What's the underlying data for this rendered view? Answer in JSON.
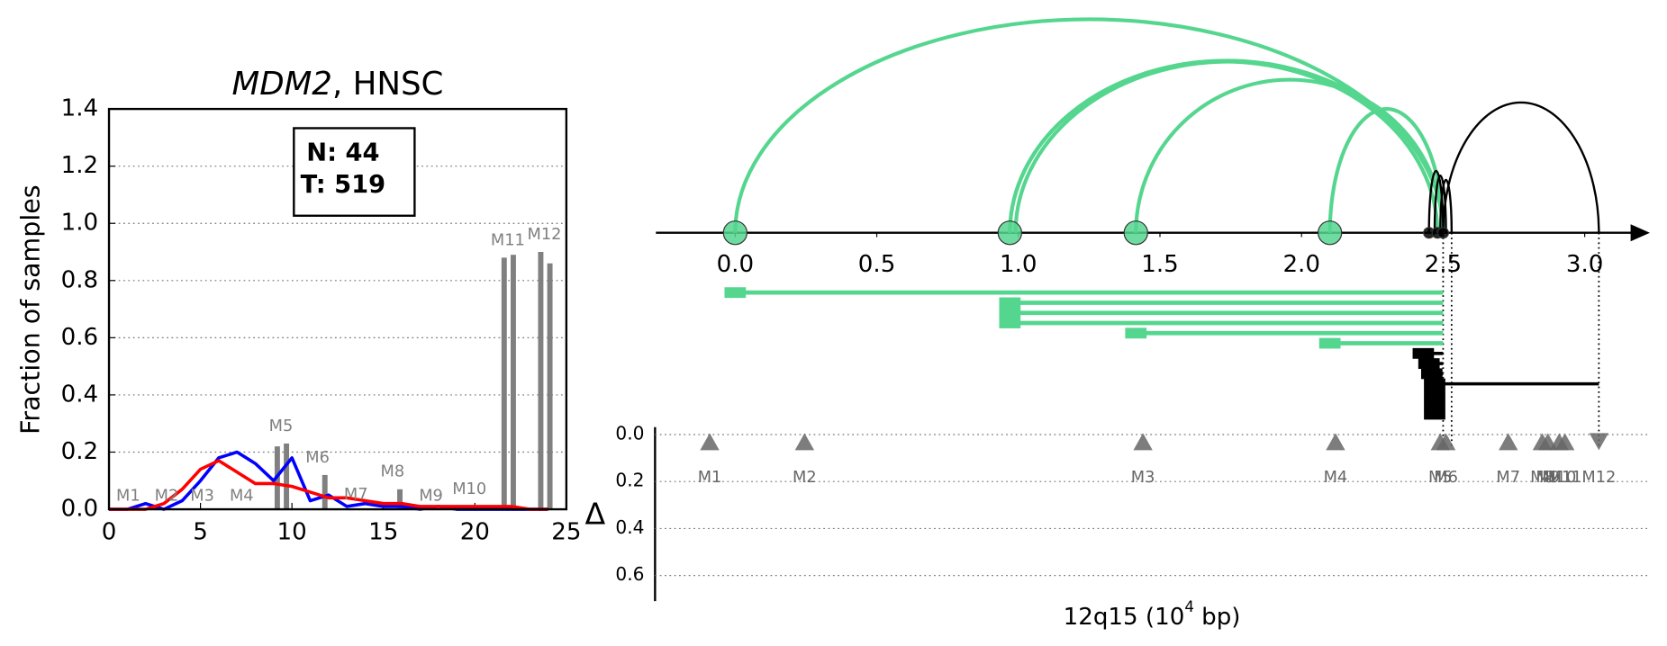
{
  "chart_data": [
    {
      "type": "line",
      "title_gene": "MDM2",
      "title_suffix": ", HNSC",
      "ylabel": "Fraction of samples",
      "annotation": [
        "N: 44",
        "T: 519"
      ],
      "x": [
        0,
        1,
        2,
        3,
        4,
        5,
        6,
        7,
        8,
        9,
        10,
        11,
        12,
        13,
        14,
        15,
        16,
        17,
        18,
        19,
        20,
        21,
        22,
        23,
        24
      ],
      "series": [
        {
          "color": "#0000ff",
          "values": [
            0,
            0,
            0.02,
            0,
            0.03,
            0.1,
            0.18,
            0.2,
            0.16,
            0.1,
            0.18,
            0.03,
            0.05,
            0.01,
            0.02,
            0.01,
            0.01,
            0,
            0.01,
            0,
            0,
            0,
            0,
            0,
            0
          ]
        },
        {
          "color": "#ff0000",
          "values": [
            0,
            0,
            0,
            0.02,
            0.07,
            0.14,
            0.17,
            0.13,
            0.09,
            0.09,
            0.08,
            0.06,
            0.04,
            0.04,
            0.03,
            0.02,
            0.02,
            0.01,
            0.01,
            0.01,
            0.01,
            0.01,
            0.01,
            0,
            0
          ]
        }
      ],
      "bars": {
        "color": "#808080",
        "x": [
          9.2,
          9.7,
          11.8,
          15.9,
          21.6,
          22.1,
          23.6,
          24.1
        ],
        "values": [
          0.22,
          0.23,
          0.12,
          0.07,
          0.88,
          0.89,
          0.9,
          0.86
        ]
      },
      "bar_labels": {
        "color": "#808080",
        "labels": [
          "M1",
          "M2",
          "M3",
          "M4",
          "M5",
          "M6",
          "M7",
          "M8",
          "M9",
          "M10",
          "M11",
          "M12"
        ],
        "x": [
          1.05,
          3.15,
          5.1,
          7.25,
          9.4,
          11.4,
          13.5,
          15.5,
          17.6,
          19.7,
          21.8,
          23.8
        ],
        "y": [
          0.045,
          0.045,
          0.045,
          0.045,
          0.29,
          0.18,
          0.05,
          0.13,
          0.045,
          0.07,
          0.94,
          0.96
        ]
      },
      "xlim": [
        0,
        25
      ],
      "ylim": [
        0,
        1.4
      ],
      "xticks": [
        0,
        5,
        10,
        15,
        20,
        25
      ],
      "yticks": [
        {
          "value": 0,
          "label": "0.0"
        },
        {
          "value": 0.2,
          "label": "0.2"
        },
        {
          "value": 0.4,
          "label": "0.4"
        },
        {
          "value": 0.6,
          "label": "0.6"
        },
        {
          "value": 0.8,
          "label": "0.8"
        },
        {
          "value": 1.0,
          "label": "1.0"
        },
        {
          "value": 1.2,
          "label": "1.2"
        },
        {
          "value": 1.4,
          "label": "1.4"
        }
      ],
      "grid": true
    },
    {
      "type": "arc",
      "xlim": [
        -0.28,
        3.23
      ],
      "xticks": [
        {
          "value": 0,
          "label": "0.0"
        },
        {
          "value": 0.5,
          "label": "0.5"
        },
        {
          "value": 1.0,
          "label": "1.0"
        },
        {
          "value": 1.5,
          "label": "1.5"
        },
        {
          "value": 2.0,
          "label": "2.0"
        },
        {
          "value": 2.5,
          "label": "2.5"
        },
        {
          "value": 3.0,
          "label": "3.0"
        }
      ],
      "xlabel_base": "12q15 (10",
      "xlabel_exp": "4",
      "xlabel_tail": " bp)",
      "breakpoints": [
        {
          "color": "#55d68f",
          "x": [
            0,
            0.97,
            1.415,
            2.1
          ]
        },
        {
          "color": "#000000",
          "x": [
            2.45,
            2.48,
            2.5
          ]
        }
      ],
      "arcs": [
        {
          "start": 0,
          "end": 2.5,
          "color": "#55d68f"
        },
        {
          "start": 0.97,
          "end": 2.48,
          "color": "#55d68f"
        },
        {
          "start": 0.97,
          "end": 2.5,
          "color": "#55d68f"
        },
        {
          "start": 0.99,
          "end": 2.5,
          "color": "#55d68f"
        },
        {
          "start": 1.415,
          "end": 2.5,
          "color": "#55d68f"
        },
        {
          "start": 2.1,
          "end": 2.5,
          "color": "#55d68f"
        },
        {
          "start": 2.45,
          "end": 2.5,
          "color": "#000000"
        },
        {
          "start": 2.47,
          "end": 2.51,
          "color": "#000000"
        },
        {
          "start": 2.49,
          "end": 2.53,
          "color": "#000000"
        },
        {
          "start": 2.5,
          "end": 3.05,
          "color": "#000000"
        }
      ],
      "segments": [
        {
          "start": 0,
          "end": 2.5,
          "color": "#55d68f"
        },
        {
          "start": 0.97,
          "end": 2.5,
          "color": "#55d68f"
        },
        {
          "start": 0.97,
          "end": 2.5,
          "color": "#55d68f"
        },
        {
          "start": 0.97,
          "end": 2.5,
          "color": "#55d68f"
        },
        {
          "start": 1.415,
          "end": 2.5,
          "color": "#55d68f"
        },
        {
          "start": 2.1,
          "end": 2.5,
          "color": "#55d68f"
        },
        {
          "start": 2.43,
          "end": 2.5,
          "color": "#000000"
        },
        {
          "start": 2.45,
          "end": 2.5,
          "color": "#000000"
        },
        {
          "start": 2.46,
          "end": 2.5,
          "color": "#000000"
        },
        {
          "start": 2.47,
          "end": 3.05,
          "color": "#000000"
        },
        {
          "start": 2.47,
          "end": 2.5,
          "color": "#000000"
        },
        {
          "start": 2.47,
          "end": 2.5,
          "color": "#000000"
        },
        {
          "start": 2.47,
          "end": 2.5,
          "color": "#000000"
        }
      ],
      "vlines": [
        2.5,
        2.53,
        3.05
      ],
      "delta_label": "Δ",
      "delta_ylim": [
        0,
        0.7
      ],
      "delta_yticks": [
        {
          "value": 0,
          "label": "0.0"
        },
        {
          "value": 0.2,
          "label": "0.2"
        },
        {
          "value": 0.4,
          "label": "0.4"
        },
        {
          "value": 0.6,
          "label": "0.6"
        }
      ],
      "motifs": {
        "color": "#666666",
        "labels": [
          "M1",
          "M2",
          "M3",
          "M4",
          "M5",
          "M6",
          "M7",
          "M8",
          "M9",
          "M10",
          "M11",
          "M12"
        ],
        "x": [
          -0.09,
          0.245,
          1.44,
          2.12,
          2.49,
          2.51,
          2.73,
          2.85,
          2.87,
          2.91,
          2.93,
          3.05
        ],
        "delta": [
          0.03,
          0.03,
          0.03,
          0.03,
          0.03,
          0.03,
          0.03,
          0.03,
          0.03,
          0.03,
          0.03,
          0.03
        ],
        "marker": [
          "up",
          "up",
          "up",
          "up",
          "up",
          "up",
          "up",
          "up",
          "up",
          "up",
          "up",
          "down"
        ]
      },
      "grid": true
    }
  ]
}
